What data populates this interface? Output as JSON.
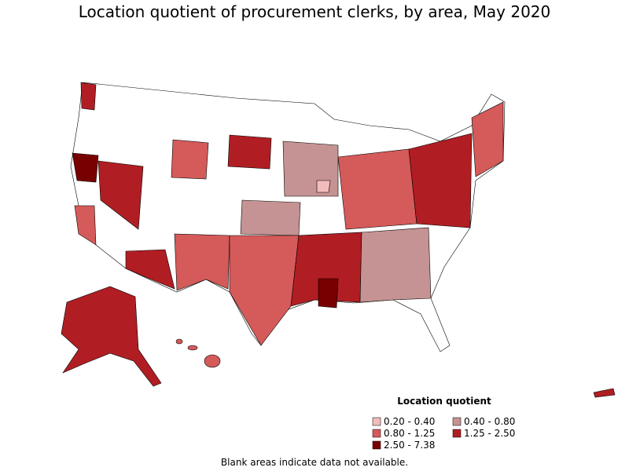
{
  "title": "Location quotient of procurement clerks, by area, May 2020",
  "legend": {
    "title": "Location quotient",
    "items": [
      {
        "label": "0.20 - 0.40",
        "color": "#f3bcbc"
      },
      {
        "label": "0.40 - 0.80",
        "color": "#c59393"
      },
      {
        "label": "0.80 - 1.25",
        "color": "#d55a5a"
      },
      {
        "label": "1.25 - 2.50",
        "color": "#b01e23"
      },
      {
        "label": "2.50 - 7.38",
        "color": "#780000"
      }
    ]
  },
  "note": "Blank areas indicate data not available."
}
